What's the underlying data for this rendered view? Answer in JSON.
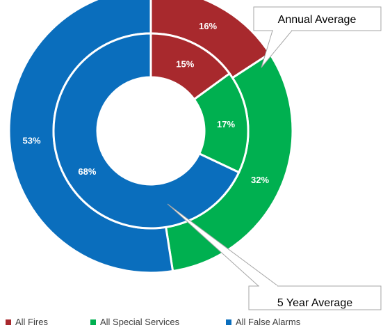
{
  "chart_data": {
    "type": "pie",
    "subtype": "doughnut",
    "categories": [
      "All Fires",
      "All Special Services",
      "All False Alarms"
    ],
    "colors": [
      "#a8292d",
      "#00b050",
      "#0a6ebd"
    ],
    "series": [
      {
        "name": "Annual Average",
        "ring": "outer",
        "values": [
          16,
          32,
          53
        ],
        "labels": [
          "16%",
          "32%",
          "53%"
        ]
      },
      {
        "name": "5 Year Average",
        "ring": "inner",
        "values": [
          15,
          17,
          68
        ],
        "labels": [
          "15%",
          "17%",
          "68%"
        ]
      }
    ],
    "legend_position": "bottom",
    "callouts": [
      "Annual Average",
      "5 Year Average"
    ]
  }
}
